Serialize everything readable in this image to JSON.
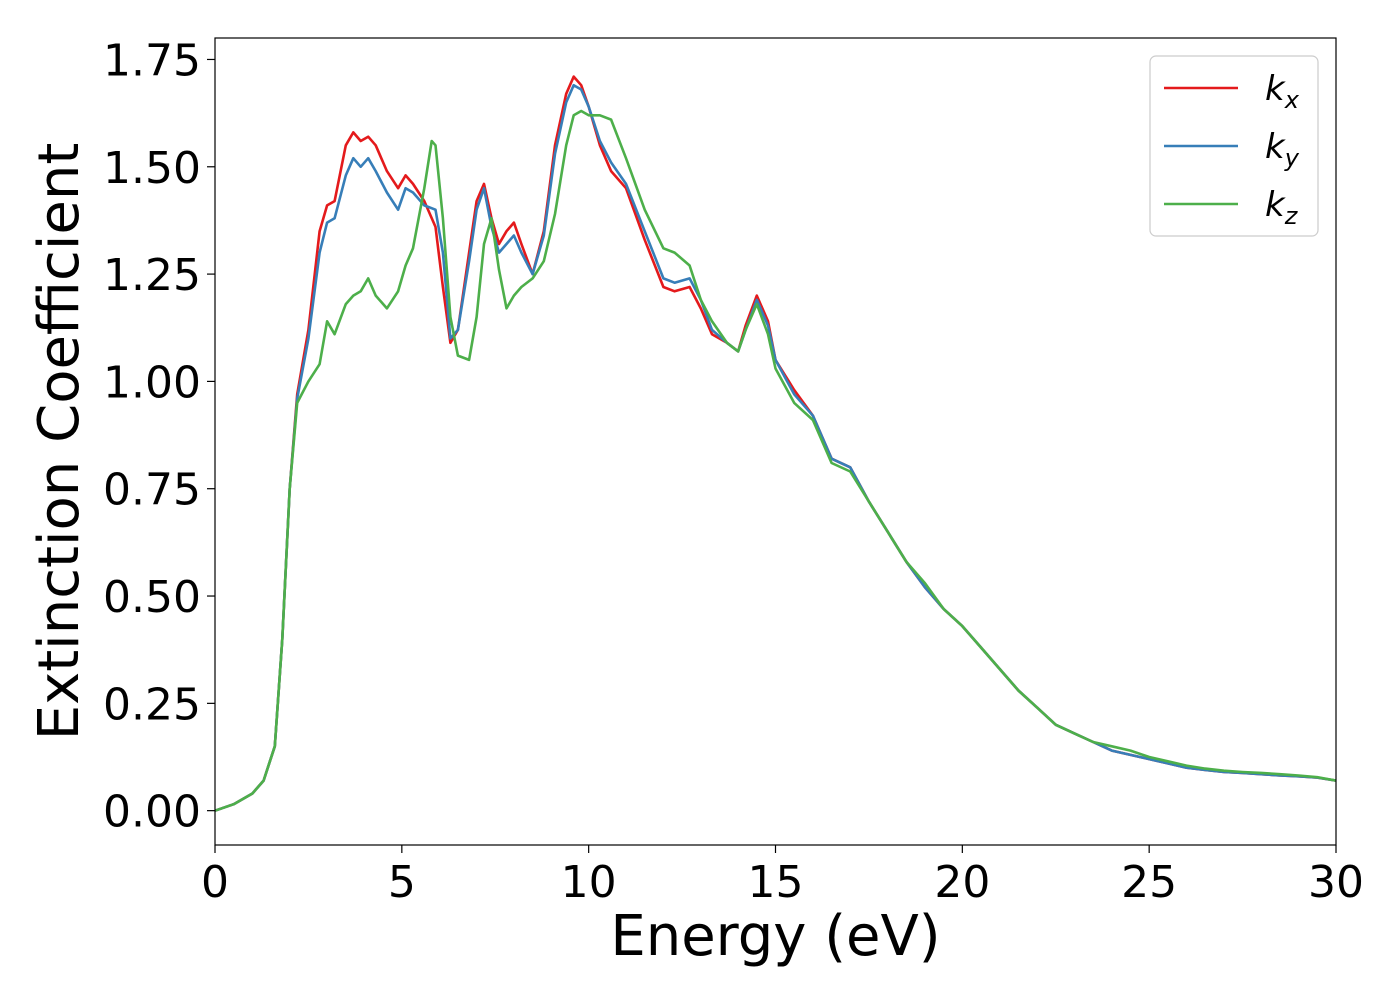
{
  "chart_data": {
    "type": "line",
    "xlabel": "Energy (eV)",
    "ylabel": "Extinction Coefficient",
    "xlim": [
      0,
      30
    ],
    "ylim": [
      -0.08,
      1.8
    ],
    "xticks": [
      "0",
      "5",
      "10",
      "15",
      "20",
      "25",
      "30"
    ],
    "yticks": [
      "0.00",
      "0.25",
      "0.50",
      "0.75",
      "1.00",
      "1.25",
      "1.50",
      "1.75"
    ],
    "grid": false,
    "legend_position": "top-right",
    "series": [
      {
        "name": "k",
        "subscript": "x",
        "color": "#e41a1c",
        "x": [
          0,
          0.5,
          1.0,
          1.3,
          1.6,
          1.8,
          2.0,
          2.2,
          2.5,
          2.8,
          3.0,
          3.2,
          3.5,
          3.7,
          3.9,
          4.1,
          4.3,
          4.6,
          4.9,
          5.1,
          5.3,
          5.6,
          5.9,
          6.1,
          6.3,
          6.5,
          6.8,
          7.0,
          7.2,
          7.4,
          7.6,
          7.8,
          8.0,
          8.2,
          8.5,
          8.8,
          9.1,
          9.4,
          9.6,
          9.8,
          10.0,
          10.3,
          10.6,
          11.0,
          11.5,
          12.0,
          12.3,
          12.7,
          13.0,
          13.3,
          13.7,
          14.0,
          14.2,
          14.5,
          14.8,
          15.0,
          15.5,
          16.0,
          16.5,
          17.0,
          17.5,
          18.0,
          18.5,
          19.0,
          19.5,
          20.0,
          20.5,
          21.0,
          21.5,
          22.0,
          22.5,
          23.0,
          23.5,
          24.0,
          24.5,
          25.0,
          25.5,
          26.0,
          26.5,
          27.0,
          27.5,
          28.0,
          28.5,
          29.0,
          29.5,
          30.0
        ],
        "y": [
          0.0,
          0.015,
          0.04,
          0.07,
          0.15,
          0.4,
          0.75,
          0.97,
          1.12,
          1.35,
          1.41,
          1.42,
          1.55,
          1.58,
          1.56,
          1.57,
          1.55,
          1.49,
          1.45,
          1.48,
          1.46,
          1.42,
          1.36,
          1.22,
          1.09,
          1.12,
          1.3,
          1.42,
          1.46,
          1.38,
          1.32,
          1.35,
          1.37,
          1.32,
          1.25,
          1.35,
          1.55,
          1.67,
          1.71,
          1.69,
          1.64,
          1.55,
          1.49,
          1.45,
          1.33,
          1.22,
          1.21,
          1.22,
          1.17,
          1.11,
          1.09,
          1.07,
          1.13,
          1.2,
          1.14,
          1.05,
          0.98,
          0.92,
          0.82,
          0.8,
          0.72,
          0.65,
          0.58,
          0.52,
          0.47,
          0.43,
          0.38,
          0.33,
          0.28,
          0.24,
          0.2,
          0.18,
          0.16,
          0.14,
          0.13,
          0.12,
          0.11,
          0.1,
          0.095,
          0.09,
          0.088,
          0.085,
          0.082,
          0.08,
          0.077,
          0.07
        ]
      },
      {
        "name": "k",
        "subscript": "y",
        "color": "#377eb8",
        "x": [
          0,
          0.5,
          1.0,
          1.3,
          1.6,
          1.8,
          2.0,
          2.2,
          2.5,
          2.8,
          3.0,
          3.2,
          3.5,
          3.7,
          3.9,
          4.1,
          4.3,
          4.6,
          4.9,
          5.1,
          5.3,
          5.6,
          5.9,
          6.1,
          6.3,
          6.5,
          6.8,
          7.0,
          7.2,
          7.4,
          7.6,
          7.8,
          8.0,
          8.2,
          8.5,
          8.8,
          9.1,
          9.4,
          9.6,
          9.8,
          10.0,
          10.3,
          10.6,
          11.0,
          11.5,
          12.0,
          12.3,
          12.7,
          13.0,
          13.3,
          13.7,
          14.0,
          14.2,
          14.5,
          14.8,
          15.0,
          15.5,
          16.0,
          16.5,
          17.0,
          17.5,
          18.0,
          18.5,
          19.0,
          19.5,
          20.0,
          20.5,
          21.0,
          21.5,
          22.0,
          22.5,
          23.0,
          23.5,
          24.0,
          24.5,
          25.0,
          25.5,
          26.0,
          26.5,
          27.0,
          27.5,
          28.0,
          28.5,
          29.0,
          29.5,
          30.0
        ],
        "y": [
          0.0,
          0.015,
          0.04,
          0.07,
          0.15,
          0.4,
          0.75,
          0.96,
          1.1,
          1.3,
          1.37,
          1.38,
          1.48,
          1.52,
          1.5,
          1.52,
          1.49,
          1.44,
          1.4,
          1.45,
          1.44,
          1.41,
          1.4,
          1.3,
          1.1,
          1.12,
          1.28,
          1.4,
          1.45,
          1.36,
          1.3,
          1.32,
          1.34,
          1.3,
          1.25,
          1.34,
          1.53,
          1.65,
          1.69,
          1.68,
          1.64,
          1.56,
          1.51,
          1.46,
          1.35,
          1.24,
          1.23,
          1.24,
          1.19,
          1.12,
          1.09,
          1.07,
          1.12,
          1.19,
          1.13,
          1.05,
          0.97,
          0.92,
          0.82,
          0.8,
          0.72,
          0.65,
          0.58,
          0.52,
          0.47,
          0.43,
          0.38,
          0.33,
          0.28,
          0.24,
          0.2,
          0.18,
          0.16,
          0.14,
          0.13,
          0.12,
          0.11,
          0.1,
          0.095,
          0.09,
          0.088,
          0.085,
          0.082,
          0.08,
          0.077,
          0.07
        ]
      },
      {
        "name": "k",
        "subscript": "z",
        "color": "#4daf4a",
        "x": [
          0,
          0.5,
          1.0,
          1.3,
          1.6,
          1.8,
          2.0,
          2.2,
          2.5,
          2.8,
          3.0,
          3.2,
          3.5,
          3.7,
          3.9,
          4.1,
          4.3,
          4.6,
          4.9,
          5.1,
          5.3,
          5.6,
          5.8,
          5.9,
          6.1,
          6.3,
          6.5,
          6.8,
          7.0,
          7.2,
          7.4,
          7.6,
          7.8,
          8.0,
          8.2,
          8.5,
          8.8,
          9.1,
          9.4,
          9.6,
          9.8,
          10.0,
          10.3,
          10.6,
          11.0,
          11.5,
          12.0,
          12.3,
          12.7,
          13.0,
          13.3,
          13.7,
          14.0,
          14.2,
          14.5,
          14.8,
          15.0,
          15.5,
          16.0,
          16.5,
          17.0,
          17.5,
          18.0,
          18.5,
          19.0,
          19.5,
          20.0,
          20.5,
          21.0,
          21.5,
          22.0,
          22.5,
          23.0,
          23.5,
          24.0,
          24.5,
          25.0,
          25.5,
          26.0,
          26.5,
          27.0,
          27.5,
          28.0,
          28.5,
          29.0,
          29.5,
          30.0
        ],
        "y": [
          0.0,
          0.015,
          0.04,
          0.07,
          0.15,
          0.4,
          0.75,
          0.95,
          1.0,
          1.04,
          1.14,
          1.11,
          1.18,
          1.2,
          1.21,
          1.24,
          1.2,
          1.17,
          1.21,
          1.27,
          1.31,
          1.45,
          1.56,
          1.55,
          1.38,
          1.15,
          1.06,
          1.05,
          1.15,
          1.32,
          1.38,
          1.26,
          1.17,
          1.2,
          1.22,
          1.24,
          1.28,
          1.39,
          1.55,
          1.62,
          1.63,
          1.62,
          1.62,
          1.61,
          1.52,
          1.4,
          1.31,
          1.3,
          1.27,
          1.19,
          1.14,
          1.09,
          1.07,
          1.12,
          1.18,
          1.11,
          1.03,
          0.95,
          0.91,
          0.81,
          0.79,
          0.72,
          0.65,
          0.58,
          0.53,
          0.47,
          0.43,
          0.38,
          0.33,
          0.28,
          0.24,
          0.2,
          0.18,
          0.16,
          0.15,
          0.14,
          0.125,
          0.115,
          0.105,
          0.098,
          0.093,
          0.09,
          0.088,
          0.085,
          0.082,
          0.078,
          0.07
        ]
      }
    ]
  }
}
